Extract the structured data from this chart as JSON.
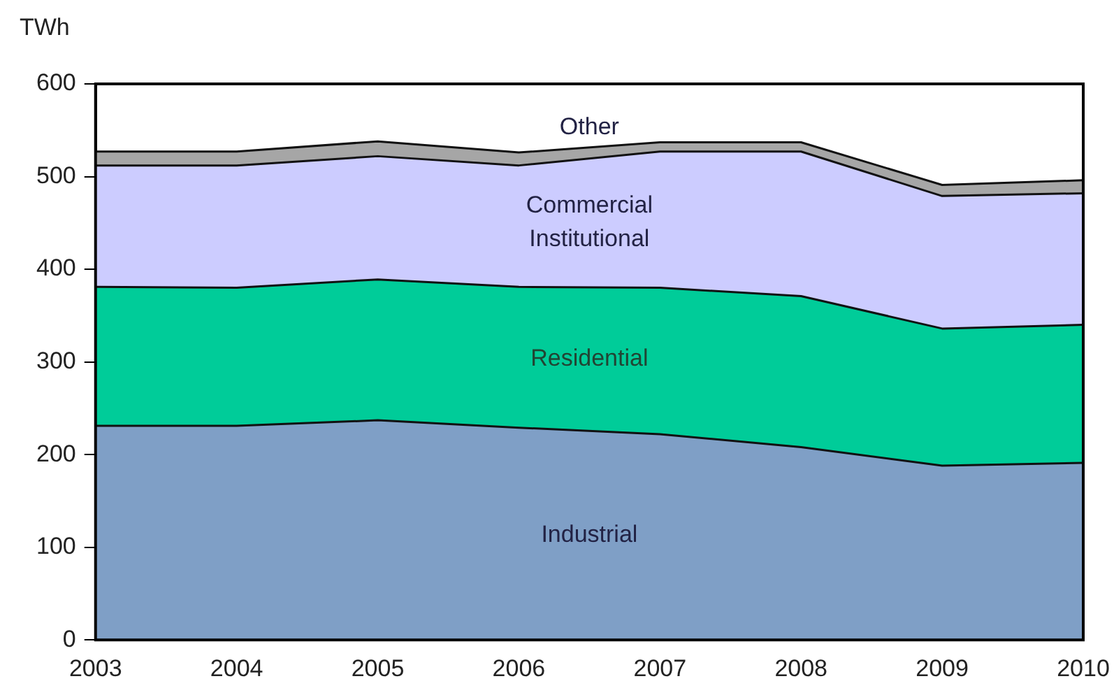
{
  "chart_data": {
    "type": "area",
    "stacked": true,
    "ylabel": "TWh",
    "categories": [
      "2003",
      "2004",
      "2005",
      "2006",
      "2007",
      "2008",
      "2009",
      "2010"
    ],
    "series": [
      {
        "name": "Industrial",
        "color": "#7f9fc6",
        "values": [
          231,
          231,
          237,
          229,
          222,
          208,
          188,
          191
        ]
      },
      {
        "name": "Residential",
        "color": "#00cc99",
        "values": [
          150,
          149,
          152,
          152,
          158,
          163,
          148,
          149
        ]
      },
      {
        "name": "Commercial Institutional",
        "color": "#ccccff",
        "values": [
          131,
          132,
          133,
          131,
          147,
          156,
          143,
          142
        ]
      },
      {
        "name": "Other",
        "color": "#a6a6a6",
        "values": [
          15,
          15,
          16,
          14,
          10,
          10,
          12,
          14
        ]
      }
    ],
    "ylim": [
      0,
      600
    ],
    "yticks": [
      0,
      100,
      200,
      300,
      400,
      500,
      600
    ],
    "grid": false,
    "legend": false,
    "marker": "none"
  }
}
